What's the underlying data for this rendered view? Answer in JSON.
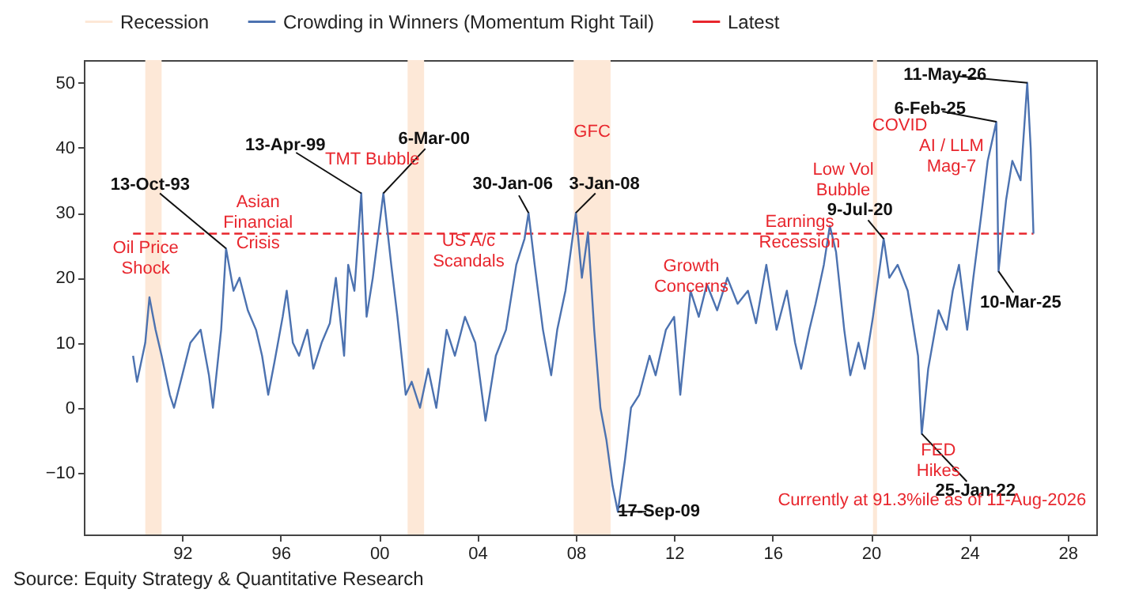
{
  "chart_data": {
    "type": "line",
    "x": [
      "1990-01",
      "1990-03",
      "1990-07",
      "1990-09",
      "1990-12",
      "1991-03",
      "1991-07",
      "1991-09",
      "1992-01",
      "1992-05",
      "1992-10",
      "1993-02",
      "1993-04",
      "1993-08",
      "1993-10-13",
      "1994-02",
      "1994-05",
      "1994-09",
      "1995-01",
      "1995-04",
      "1995-07",
      "1995-10",
      "1996-02",
      "1996-04",
      "1996-07",
      "1996-10",
      "1997-02",
      "1997-05",
      "1997-09",
      "1998-01",
      "1998-04",
      "1998-08",
      "1998-10",
      "1999-01",
      "1999-04-13",
      "1999-07",
      "1999-10",
      "2000-03-06",
      "2000-07",
      "2000-10",
      "2001-02",
      "2001-05",
      "2001-09",
      "2002-01",
      "2002-05",
      "2002-10",
      "2003-02",
      "2003-07",
      "2003-12",
      "2004-05",
      "2004-10",
      "2005-03",
      "2005-08",
      "2005-12",
      "2006-01-30",
      "2006-05",
      "2006-09",
      "2007-01",
      "2007-04",
      "2007-08",
      "2008-01-03",
      "2008-04",
      "2008-07",
      "2008-10",
      "2009-01",
      "2009-04",
      "2009-07",
      "2009-09-17",
      "2010-01",
      "2010-04",
      "2010-08",
      "2011-01",
      "2011-04",
      "2011-09",
      "2012-01",
      "2012-04",
      "2012-09",
      "2013-01",
      "2013-05",
      "2013-10",
      "2014-03",
      "2014-08",
      "2015-01",
      "2015-05",
      "2015-10",
      "2016-03",
      "2016-08",
      "2016-12",
      "2017-03",
      "2017-07",
      "2017-10",
      "2018-02",
      "2018-05",
      "2018-08",
      "2018-12",
      "2019-03",
      "2019-07",
      "2019-10",
      "2020-02",
      "2020-07-09",
      "2020-10",
      "2021-02",
      "2021-07",
      "2021-12",
      "2022-01-25",
      "2022-05",
      "2022-10",
      "2023-02",
      "2023-05",
      "2023-08",
      "2023-12",
      "2024-03",
      "2024-07",
      "2024-10",
      "2025-02-06",
      "2025-03-10",
      "2025-07",
      "2025-10",
      "2026-02",
      "2026-05-11",
      "2026-07",
      "2026-08-11"
    ],
    "series": [
      {
        "name": "Crowding in Winners (Momentum Right Tail)",
        "color": "#4c72b0",
        "values": [
          8,
          4,
          10,
          17,
          12,
          8,
          2,
          0,
          5,
          10,
          12,
          5,
          0,
          12,
          24.5,
          18,
          20,
          15,
          12,
          8,
          2,
          7,
          14,
          18,
          10,
          8,
          12,
          6,
          10,
          13,
          20,
          8,
          22,
          18,
          33,
          14,
          20,
          33,
          22,
          14,
          2,
          4,
          0,
          6,
          0,
          12,
          8,
          14,
          10,
          -2,
          8,
          12,
          22,
          26,
          30,
          22,
          12,
          5,
          12,
          18,
          30,
          20,
          27,
          12,
          0,
          -5,
          -12,
          -16,
          -8,
          0,
          2,
          8,
          5,
          12,
          14,
          2,
          18,
          14,
          19,
          15,
          20,
          16,
          18,
          13,
          22,
          12,
          18,
          10,
          6,
          12,
          16,
          22,
          28,
          24,
          12,
          5,
          10,
          6,
          14,
          26,
          20,
          22,
          18,
          8,
          -4,
          6,
          15,
          12,
          18,
          22,
          12,
          20,
          30,
          38,
          44,
          21,
          32,
          38,
          35,
          50,
          40,
          26.8
        ]
      }
    ],
    "xlim": [
      "1988-01-01",
      "2029-03-01"
    ],
    "xticks": [
      {
        "value": "1992-01-01",
        "label": "92"
      },
      {
        "value": "1996-01-01",
        "label": "96"
      },
      {
        "value": "2000-01-01",
        "label": "00"
      },
      {
        "value": "2004-01-01",
        "label": "04"
      },
      {
        "value": "2008-01-01",
        "label": "08"
      },
      {
        "value": "2012-01-01",
        "label": "12"
      },
      {
        "value": "2016-01-01",
        "label": "16"
      },
      {
        "value": "2020-01-01",
        "label": "20"
      },
      {
        "value": "2024-01-01",
        "label": "24"
      },
      {
        "value": "2028-01-01",
        "label": "28"
      }
    ],
    "ylim": [
      -19.5,
      53.5
    ],
    "yticks": [
      -10,
      0,
      10,
      20,
      30,
      40,
      50
    ],
    "bands": [
      {
        "axis": "x",
        "from": "1990-07",
        "to": "1991-03",
        "label": "Recession",
        "color": "#fde8d7"
      },
      {
        "axis": "x",
        "from": "2001-03",
        "to": "2001-11",
        "color": "#fde8d7"
      },
      {
        "axis": "x",
        "from": "2007-12",
        "to": "2009-06",
        "color": "#fde8d7"
      },
      {
        "axis": "x",
        "from": "2020-02",
        "to": "2020-04",
        "color": "#fde8d7"
      }
    ],
    "ref_lines": [
      {
        "axis": "y",
        "value": 26.8,
        "label": "Latest",
        "color": "#e8262d",
        "line_style": "dashed"
      }
    ],
    "annotations": [
      {
        "text": "13-Oct-93",
        "x": "1993-10-13",
        "y": 24.5
      },
      {
        "text": "13-Apr-99",
        "x": "1999-04-13",
        "y": 33
      },
      {
        "text": "6-Mar-00",
        "x": "2000-03-06",
        "y": 33
      },
      {
        "text": "30-Jan-06",
        "x": "2006-01-30",
        "y": 30
      },
      {
        "text": "3-Jan-08",
        "x": "2008-01-03",
        "y": 30
      },
      {
        "text": "17-Sep-09",
        "x": "2009-09-17",
        "y": -16
      },
      {
        "text": "9-Jul-20",
        "x": "2020-07-09",
        "y": 26
      },
      {
        "text": "25-Jan-22",
        "x": "2022-01-25",
        "y": -4
      },
      {
        "text": "6-Feb-25",
        "x": "2025-02-06",
        "y": 44
      },
      {
        "text": "10-Mar-25",
        "x": "2025-03-10",
        "y": 21
      },
      {
        "text": "11-May-26",
        "x": "2026-05-11",
        "y": 50
      },
      "Oil Price\nShock",
      "Asian\nFinancial\nCrisis",
      "TMT Bubble",
      "US A/c\nScandals",
      "GFC",
      "Growth\nConcerns",
      "Earnings\nRecession",
      "Low Vol\nBubble",
      "COVID",
      "AI / LLM\nMag-7",
      "FED\nHikes",
      "Currently at 91.3%ile as of 11-Aug-2026",
      "Source: Equity Strategy & Quantitative Research"
    ],
    "legend": "top",
    "grid": false
  }
}
